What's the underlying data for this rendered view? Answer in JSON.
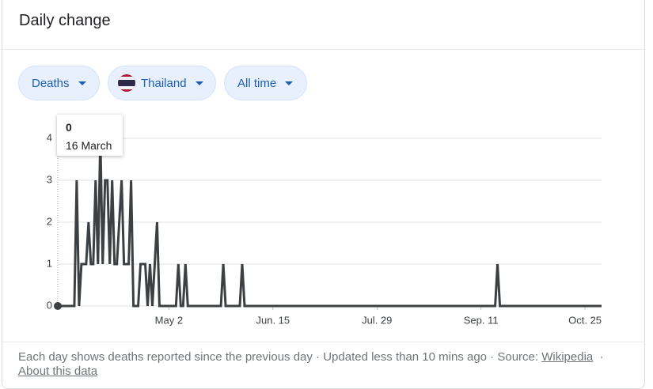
{
  "header": {
    "title": "Daily change"
  },
  "filters": [
    "Deaths",
    "Thailand",
    "All time"
  ],
  "chart_data": {
    "type": "line",
    "categories": [
      null,
      null,
      null,
      null,
      null,
      null,
      null,
      null,
      null,
      null,
      null,
      null,
      null,
      null,
      null,
      null,
      null,
      null,
      null,
      null,
      null,
      null,
      null,
      null,
      null,
      null,
      null,
      null,
      null,
      null,
      null,
      null,
      null,
      null,
      null,
      null,
      null,
      null,
      null,
      null,
      null,
      null,
      null,
      null,
      null,
      null,
      null,
      "May 2",
      null,
      null,
      null,
      null,
      null,
      null,
      null,
      null,
      null,
      null,
      null,
      null,
      null,
      null,
      null,
      null,
      null,
      null,
      null,
      null,
      null,
      null,
      null,
      null,
      null,
      null,
      null,
      null,
      null,
      null,
      null,
      null,
      null,
      null,
      null,
      null,
      null,
      null,
      null,
      null,
      null,
      null,
      null,
      "Jun. 15",
      null,
      null,
      null,
      null,
      null,
      null,
      null,
      null,
      null,
      null,
      null,
      null,
      null,
      null,
      null,
      null,
      null,
      null,
      null,
      null,
      null,
      null,
      null,
      null,
      null,
      null,
      null,
      null,
      null,
      null,
      null,
      null,
      null,
      null,
      null,
      null,
      null,
      null,
      null,
      null,
      null,
      null,
      null,
      "Jul. 29",
      null,
      null,
      null,
      null,
      null,
      null,
      null,
      null,
      null,
      null,
      null,
      null,
      null,
      null,
      null,
      null,
      null,
      null,
      null,
      null,
      null,
      null,
      null,
      null,
      null,
      null,
      null,
      null,
      null,
      null,
      null,
      null,
      null,
      null,
      null,
      null,
      null,
      null,
      null,
      null,
      null,
      null,
      null,
      "Sep. 11",
      null,
      null,
      null,
      null,
      null,
      null,
      null,
      null,
      null,
      null,
      null,
      null,
      null,
      null,
      null,
      null,
      null,
      null,
      null,
      null,
      null,
      null,
      null,
      null,
      null,
      null,
      null,
      null,
      null,
      null,
      null,
      null,
      null,
      null,
      null,
      null,
      null,
      null,
      null,
      null,
      null,
      null,
      null,
      "Oct. 25",
      null,
      null,
      null,
      null,
      null,
      null,
      null
    ],
    "values": [
      0,
      0,
      0,
      0,
      0,
      0,
      0,
      0,
      3,
      0,
      1,
      1,
      1,
      2,
      1,
      1,
      3,
      1,
      4,
      1,
      3,
      3,
      1,
      3,
      1,
      1,
      2,
      3,
      1,
      1,
      1,
      3,
      0,
      0,
      0,
      1,
      1,
      1,
      0,
      1,
      0,
      1,
      2,
      0,
      0,
      0,
      0,
      0,
      0,
      0,
      0,
      1,
      0,
      0,
      1,
      0,
      0,
      0,
      0,
      0,
      0,
      0,
      0,
      0,
      0,
      0,
      0,
      0,
      0,
      0,
      1,
      0,
      0,
      0,
      0,
      0,
      0,
      0,
      1,
      0,
      0,
      0,
      0,
      0,
      0,
      0,
      0,
      0,
      0,
      0,
      0,
      0,
      0,
      0,
      0,
      0,
      0,
      0,
      0,
      0,
      0,
      0,
      0,
      0,
      0,
      0,
      0,
      0,
      0,
      0,
      0,
      0,
      0,
      0,
      0,
      0,
      0,
      0,
      0,
      0,
      0,
      0,
      0,
      0,
      0,
      0,
      0,
      0,
      0,
      0,
      0,
      0,
      0,
      0,
      0,
      0,
      0,
      0,
      0,
      0,
      0,
      0,
      0,
      0,
      0,
      0,
      0,
      0,
      0,
      0,
      0,
      0,
      0,
      0,
      0,
      0,
      0,
      0,
      0,
      0,
      0,
      0,
      0,
      0,
      0,
      0,
      0,
      0,
      0,
      0,
      0,
      0,
      0,
      0,
      0,
      0,
      0,
      0,
      0,
      0,
      0,
      0,
      0,
      0,
      0,
      0,
      1,
      0,
      0,
      0,
      0,
      0,
      0,
      0,
      0,
      0,
      0,
      0,
      0,
      0,
      0,
      0,
      0,
      0,
      0,
      0,
      0,
      0,
      0,
      0,
      0,
      0,
      0,
      0,
      0,
      0,
      0,
      0,
      0,
      0,
      0,
      0,
      0,
      0,
      0,
      0,
      0,
      0,
      0,
      0,
      0
    ],
    "color": "#3c4043",
    "ylim": [
      0,
      4
    ],
    "yticks": [
      0,
      1,
      2,
      3,
      4
    ],
    "grid": true,
    "tooltip": {
      "label": "16 March"
    }
  },
  "footer": {
    "note": "Each day shows deaths reported since the previous day · Updated less than 10 mins ago · Source:",
    "source": "Wikipedia",
    "separator": "·",
    "about": "About this data"
  }
}
